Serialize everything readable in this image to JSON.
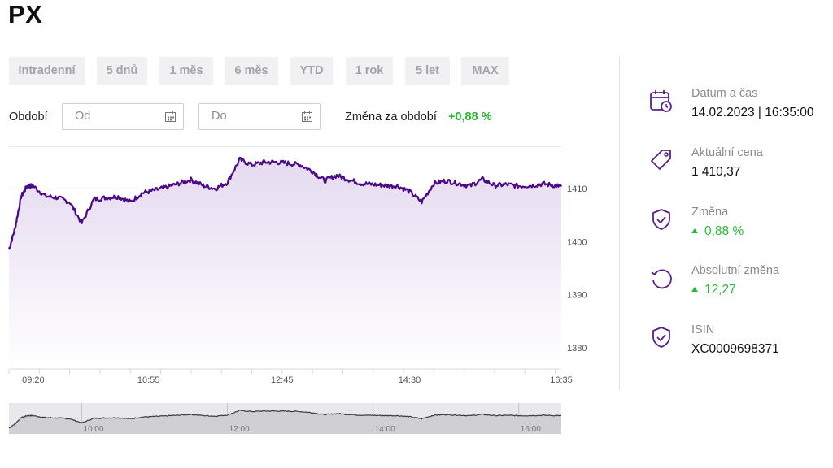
{
  "title": "PX",
  "tabs": [
    {
      "label": "Intradenní",
      "active": true
    },
    {
      "label": "5 dnů",
      "active": false
    },
    {
      "label": "1 měs",
      "active": false
    },
    {
      "label": "6 měs",
      "active": false
    },
    {
      "label": "YTD",
      "active": false
    },
    {
      "label": "1 rok",
      "active": false
    },
    {
      "label": "5 let",
      "active": false
    },
    {
      "label": "MAX",
      "active": false
    }
  ],
  "filters": {
    "period_label": "Období",
    "from_placeholder": "Od",
    "to_placeholder": "Do",
    "change_label": "Změna za období",
    "change_value": "+0,88 %"
  },
  "info": [
    {
      "label": "Datum a čas",
      "value": "14.02.2023 | 16:35:00",
      "icon": "calendar-clock-icon"
    },
    {
      "label": "Aktuální cena",
      "value": "1 410,37",
      "icon": "price-tag-icon"
    },
    {
      "label": "Změna",
      "value": "0,88 %",
      "icon": "shield-check-icon",
      "up": true
    },
    {
      "label": "Absolutní změna",
      "value": "12,27",
      "icon": "refresh-icon",
      "up": true
    },
    {
      "label": "ISIN",
      "value": "XC0009698371",
      "icon": "shield-check-icon"
    }
  ],
  "colors": {
    "accent": "#d2001c",
    "line": "#4b0b86",
    "positive": "#28b833"
  },
  "chart_data": {
    "type": "area",
    "x": [
      "09:00",
      "09:05",
      "09:10",
      "09:15",
      "09:20",
      "09:30",
      "09:40",
      "09:50",
      "10:00",
      "10:10",
      "10:20",
      "10:30",
      "10:40",
      "10:50",
      "11:00",
      "11:10",
      "11:20",
      "11:30",
      "11:40",
      "11:50",
      "12:00",
      "12:10",
      "12:20",
      "12:30",
      "12:40",
      "12:50",
      "13:00",
      "13:10",
      "13:20",
      "13:30",
      "13:40",
      "13:50",
      "14:00",
      "14:10",
      "14:20",
      "14:30",
      "14:40",
      "14:50",
      "15:00",
      "15:10",
      "15:20",
      "15:30",
      "15:40",
      "15:50",
      "16:00",
      "16:10",
      "16:20",
      "16:30",
      "16:35"
    ],
    "values": [
      1398.5,
      1402.5,
      1408.5,
      1410.5,
      1410.5,
      1408.6,
      1408.3,
      1407.5,
      1403.5,
      1408.0,
      1408.3,
      1408.5,
      1407.5,
      1409.2,
      1409.7,
      1410.3,
      1411.0,
      1411.7,
      1410.6,
      1410.0,
      1411.2,
      1415.5,
      1414.5,
      1415.0,
      1415.0,
      1414.8,
      1414.5,
      1413.3,
      1411.5,
      1412.5,
      1411.7,
      1411.0,
      1410.8,
      1410.6,
      1410.5,
      1409.5,
      1407.5,
      1411.0,
      1411.5,
      1411.0,
      1410.5,
      1411.8,
      1410.6,
      1410.8,
      1410.5,
      1410.6,
      1410.9,
      1410.6,
      1410.4
    ],
    "x_ticks": [
      "09:20",
      "10:55",
      "12:45",
      "14:30",
      "16:35"
    ],
    "y_ticks": [
      1410,
      1400,
      1390,
      1380
    ],
    "ylim": [
      1376,
      1418
    ],
    "grid": true,
    "navigator": {
      "x_ticks": [
        "10:00",
        "12:00",
        "14:00",
        "16:00"
      ]
    }
  }
}
